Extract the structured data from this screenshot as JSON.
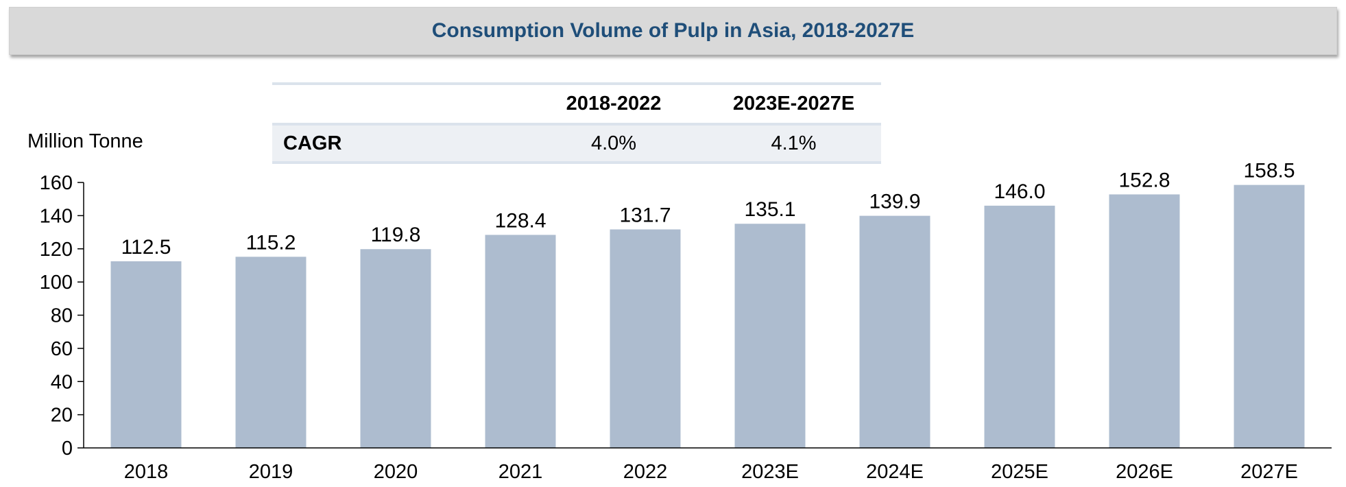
{
  "chart_data": {
    "type": "bar",
    "title": "Consumption Volume of Pulp in Asia, 2018-2027E",
    "ylabel": "Million Tonne",
    "xlabel": "",
    "categories": [
      "2018",
      "2019",
      "2020",
      "2021",
      "2022",
      "2023E",
      "2024E",
      "2025E",
      "2026E",
      "2027E"
    ],
    "values": [
      112.5,
      115.2,
      119.8,
      128.4,
      131.7,
      135.1,
      139.9,
      146.0,
      152.8,
      158.5
    ],
    "value_labels": [
      "112.5",
      "115.2",
      "119.8",
      "128.4",
      "131.7",
      "135.1",
      "139.9",
      "146.0",
      "152.8",
      "158.5"
    ],
    "ylim": [
      0,
      160
    ],
    "yticks": [
      "0",
      "20",
      "40",
      "60",
      "80",
      "100",
      "120",
      "140",
      "160"
    ],
    "grid": false,
    "legend": "none",
    "bar_color": "#adbccf"
  },
  "cagr_table": {
    "headers": [
      "",
      "2018-2022",
      "2023E-2027E"
    ],
    "row": {
      "label": "CAGR",
      "values": [
        "4.0%",
        "4.1%"
      ]
    }
  }
}
